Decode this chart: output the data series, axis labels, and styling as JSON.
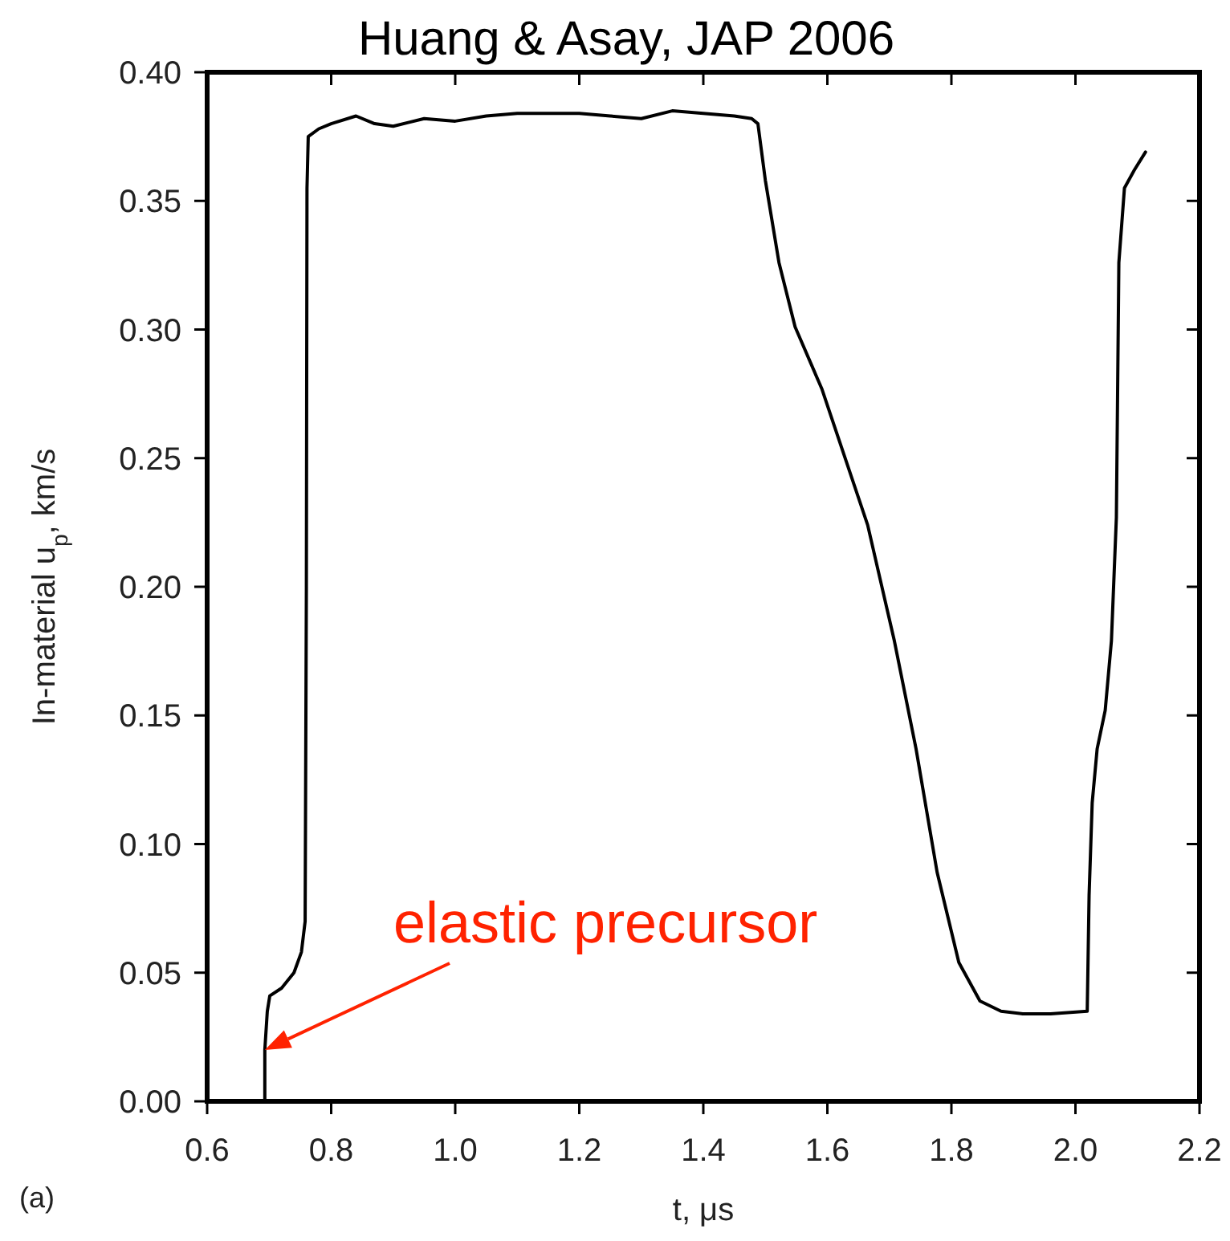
{
  "chart_data": {
    "type": "line",
    "title": "Huang & Asay, JAP 2006",
    "xlabel": "t, μs",
    "ylabel": "In-material u$_{p}$, km/s",
    "xlim": [
      0.6,
      2.2
    ],
    "ylim": [
      0,
      0.4
    ],
    "xticks": [
      0.6,
      0.8,
      {
        "value": 1.0,
        "label": "1.0"
      },
      1.2,
      1.4,
      1.6,
      1.8,
      {
        "value": 2.0,
        "label": "2.0"
      },
      2.2
    ],
    "yticks": [
      {
        "value": 0,
        "label": "0.00"
      },
      0.05,
      {
        "value": 0.1,
        "label": "0.10"
      },
      0.15,
      {
        "value": 0.2,
        "label": "0.20"
      },
      0.25,
      {
        "value": 0.3,
        "label": "0.30"
      },
      0.35,
      {
        "value": 0.4,
        "label": "0.40"
      }
    ],
    "grid": false,
    "marker": "none",
    "line_style": "solid",
    "series": [
      {
        "color": "#000000",
        "x": [
          0.693,
          0.693,
          0.697,
          0.701,
          0.72,
          0.74,
          0.752,
          0.758,
          0.76,
          0.761,
          0.763,
          0.78,
          0.8,
          0.84,
          0.87,
          0.9,
          0.95,
          1.0,
          1.05,
          1.1,
          1.2,
          1.25,
          1.3,
          1.35,
          1.4,
          1.45,
          1.478,
          1.488,
          1.5,
          1.522,
          1.548,
          1.591,
          1.665,
          1.708,
          1.743,
          1.777,
          1.812,
          1.846,
          1.88,
          1.915,
          1.96,
          2.019,
          2.022,
          2.027,
          2.035,
          2.048,
          2.058,
          2.066,
          2.07,
          2.079,
          2.095,
          2.113
        ],
        "values": [
          0,
          0.02,
          0.035,
          0.041,
          0.044,
          0.05,
          0.058,
          0.07,
          0.2,
          0.355,
          0.375,
          0.378,
          0.38,
          0.383,
          0.38,
          0.379,
          0.382,
          0.381,
          0.383,
          0.384,
          0.384,
          0.383,
          0.382,
          0.385,
          0.384,
          0.383,
          0.382,
          0.38,
          0.358,
          0.326,
          0.301,
          0.277,
          0.224,
          0.179,
          0.137,
          0.089,
          0.054,
          0.039,
          0.035,
          0.034,
          0.034,
          0.035,
          0.08,
          0.116,
          0.137,
          0.152,
          0.179,
          0.227,
          0.326,
          0.355,
          0.362,
          0.369
        ]
      }
    ],
    "annotations": [
      {
        "text": "elastic precursor",
        "x": 0.693,
        "y": 0.02
      },
      "(a)"
    ]
  }
}
